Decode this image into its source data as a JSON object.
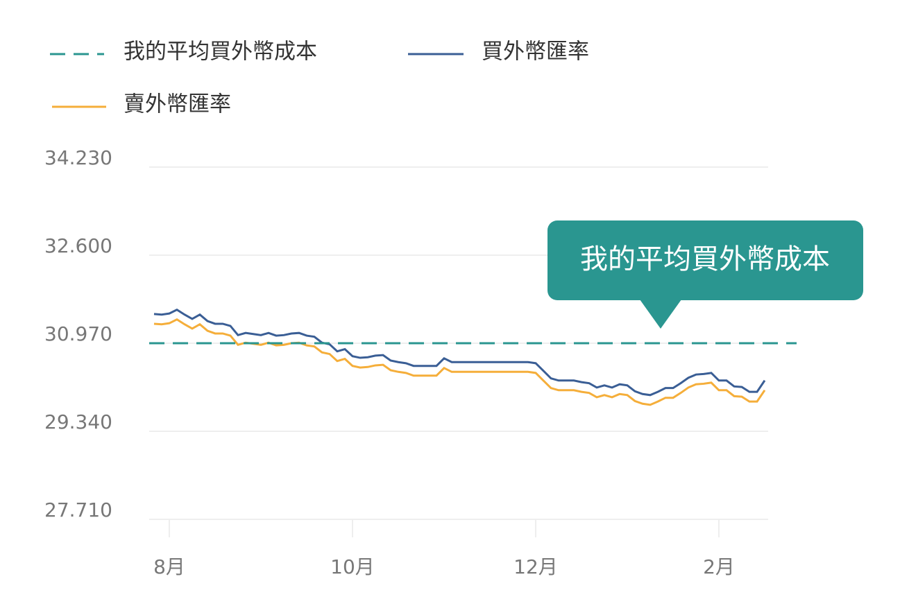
{
  "chart_data": {
    "type": "line",
    "categories": [
      null,
      null,
      "8月",
      null,
      null,
      null,
      null,
      null,
      null,
      null,
      null,
      null,
      null,
      null,
      null,
      null,
      null,
      null,
      null,
      null,
      null,
      null,
      null,
      null,
      null,
      null,
      "10月",
      null,
      null,
      null,
      null,
      null,
      null,
      null,
      null,
      null,
      null,
      null,
      null,
      null,
      null,
      null,
      null,
      null,
      null,
      null,
      null,
      null,
      null,
      null,
      "12月",
      null,
      null,
      null,
      null,
      null,
      null,
      null,
      null,
      null,
      null,
      null,
      null,
      null,
      null,
      null,
      null,
      null,
      null,
      null,
      null,
      null,
      null,
      null,
      "2月",
      null,
      null,
      null,
      null,
      null,
      null
    ],
    "series": [
      {
        "name": "買外幣匯率",
        "color": "#3a5e95",
        "values": [
          31.51,
          31.5,
          31.52,
          31.59,
          31.5,
          31.42,
          31.5,
          31.38,
          31.33,
          31.33,
          31.29,
          31.12,
          31.16,
          31.14,
          31.12,
          31.16,
          31.11,
          31.12,
          31.15,
          31.16,
          31.11,
          31.09,
          30.98,
          30.95,
          30.82,
          30.86,
          30.73,
          30.7,
          30.71,
          30.74,
          30.75,
          30.65,
          30.62,
          30.6,
          30.55,
          30.55,
          30.55,
          30.55,
          30.69,
          30.62,
          30.62,
          30.62,
          30.62,
          30.62,
          30.62,
          30.62,
          30.62,
          30.62,
          30.62,
          30.62,
          30.6,
          30.46,
          30.32,
          30.28,
          30.28,
          30.28,
          30.25,
          30.23,
          30.15,
          30.19,
          30.15,
          30.21,
          30.19,
          30.08,
          30.03,
          30.01,
          30.07,
          30.14,
          30.14,
          30.23,
          30.33,
          30.39,
          30.4,
          30.42,
          30.28,
          30.28,
          30.17,
          30.16,
          30.07,
          30.07,
          30.28
        ]
      },
      {
        "name": "賣外幣匯率",
        "color": "#f5ae3a",
        "values": [
          31.33,
          31.32,
          31.34,
          31.41,
          31.32,
          31.24,
          31.32,
          31.2,
          31.15,
          31.15,
          31.11,
          30.94,
          30.98,
          30.96,
          30.94,
          30.98,
          30.93,
          30.94,
          30.97,
          30.98,
          30.93,
          30.91,
          30.8,
          30.77,
          30.64,
          30.68,
          30.55,
          30.52,
          30.53,
          30.56,
          30.57,
          30.47,
          30.44,
          30.42,
          30.37,
          30.37,
          30.37,
          30.37,
          30.51,
          30.44,
          30.44,
          30.44,
          30.44,
          30.44,
          30.44,
          30.44,
          30.44,
          30.44,
          30.44,
          30.44,
          30.42,
          30.28,
          30.14,
          30.1,
          30.1,
          30.1,
          30.07,
          30.05,
          29.97,
          30.01,
          29.97,
          30.03,
          30.01,
          29.9,
          29.85,
          29.83,
          29.89,
          29.96,
          29.96,
          30.05,
          30.15,
          30.21,
          30.22,
          30.24,
          30.1,
          30.1,
          29.99,
          29.98,
          29.89,
          29.89,
          30.1
        ]
      }
    ],
    "reference_line": {
      "name": "我的平均買外幣成本",
      "value": 30.97,
      "color": "#2a9690"
    },
    "annotation": "我的平均買外幣成本",
    "ylim": [
      27.71,
      34.23
    ],
    "yticks": [
      {
        "value": 27.71,
        "label": "27.710"
      },
      {
        "value": 29.34,
        "label": "29.340"
      },
      {
        "value": 30.97,
        "label": "30.970"
      },
      {
        "value": 32.6,
        "label": "32.600"
      },
      {
        "value": 34.23,
        "label": "34.230"
      }
    ],
    "grid": true
  }
}
